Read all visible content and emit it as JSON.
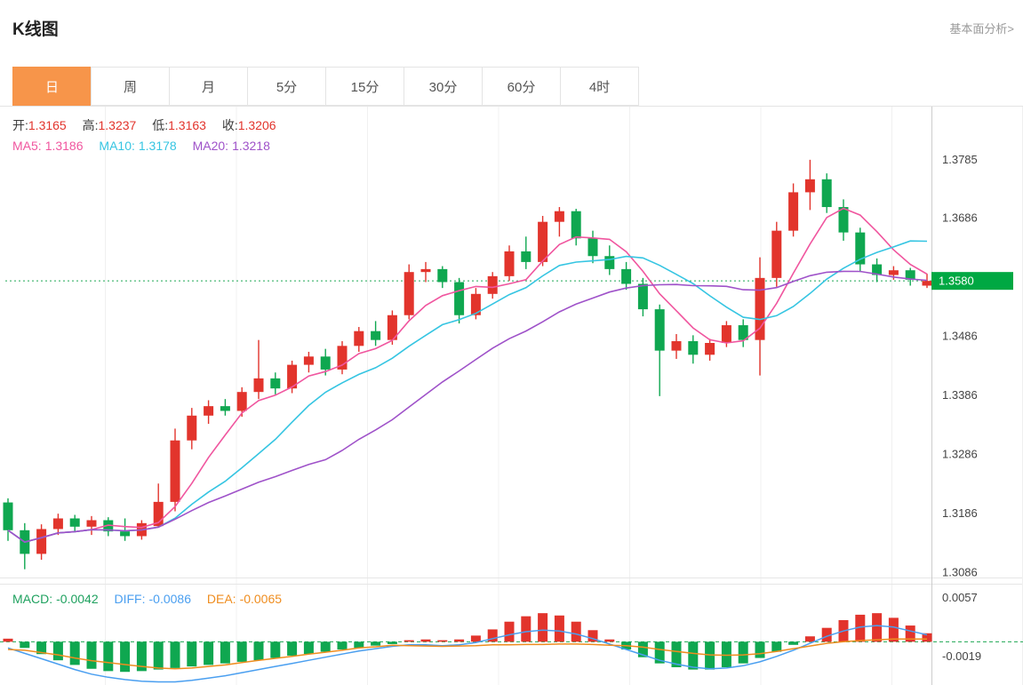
{
  "header": {
    "title": "K线图",
    "link_label": "基本面分析>"
  },
  "tabs": {
    "items": [
      {
        "label": "日",
        "active": true
      },
      {
        "label": "周",
        "active": false
      },
      {
        "label": "月",
        "active": false
      },
      {
        "label": "5分",
        "active": false
      },
      {
        "label": "15分",
        "active": false
      },
      {
        "label": "30分",
        "active": false
      },
      {
        "label": "60分",
        "active": false
      },
      {
        "label": "4时",
        "active": false
      }
    ]
  },
  "legend": {
    "ohlc": {
      "open_label": "开:",
      "open": "1.3165",
      "high_label": "高:",
      "high": "1.3237",
      "low_label": "低:",
      "low": "1.3163",
      "close_label": "收:",
      "close": "1.3206"
    },
    "ma": {
      "ma5_label": "MA5:",
      "ma5": "1.3186",
      "ma10_label": "MA10:",
      "ma10": "1.3178",
      "ma20_label": "MA20:",
      "ma20": "1.3218"
    },
    "macd": {
      "macd_label": "MACD:",
      "macd": "-0.0042",
      "diff_label": "DIFF:",
      "diff": "-0.0086",
      "dea_label": "DEA:",
      "dea": "-0.0065"
    }
  },
  "colors": {
    "up": "#e2342c",
    "down": "#0fa750",
    "ma5": "#f0569f",
    "ma10": "#36c5e2",
    "ma20": "#9f52c9",
    "diff": "#4a9ff0",
    "dea": "#ef8d1f",
    "macd_text": "#1fa15f",
    "price_line": "#1fa653",
    "badge_bg": "#00a843",
    "accent_tab": "#f7954a",
    "axis_line": "#cccccc",
    "grid_line": "#f0f0f0",
    "separator": "#e6e6e6",
    "tick_text": "#444444"
  },
  "chart_data": {
    "type": "candlestick",
    "title": "K线图 (daily K-line with MA5/MA10/MA20 and MACD)",
    "current_price": "1.3580",
    "price_axis": {
      "min": 1.3078,
      "max": 1.3875,
      "ticks": [
        "1.3785",
        "1.3686",
        "1.3486",
        "1.3386",
        "1.3286",
        "1.3186",
        "1.3086"
      ]
    },
    "ma_periods": [
      5,
      10,
      20
    ],
    "candles": [
      [
        1.3205,
        1.3212,
        1.314,
        1.3158
      ],
      [
        1.3158,
        1.317,
        1.3092,
        1.3118
      ],
      [
        1.3118,
        1.3168,
        1.3108,
        1.316
      ],
      [
        1.316,
        1.3186,
        1.315,
        1.3178
      ],
      [
        1.3178,
        1.3184,
        1.3156,
        1.3164
      ],
      [
        1.3164,
        1.3182,
        1.315,
        1.3175
      ],
      [
        1.3175,
        1.318,
        1.3148,
        1.3156
      ],
      [
        1.3156,
        1.3178,
        1.314,
        1.3148
      ],
      [
        1.3148,
        1.3175,
        1.3142,
        1.317
      ],
      [
        1.3165,
        1.3237,
        1.3163,
        1.3206
      ],
      [
        1.3206,
        1.333,
        1.319,
        1.331
      ],
      [
        1.331,
        1.3365,
        1.3295,
        1.3352
      ],
      [
        1.3352,
        1.3378,
        1.3338,
        1.3368
      ],
      [
        1.3368,
        1.338,
        1.3352,
        1.336
      ],
      [
        1.336,
        1.34,
        1.335,
        1.3392
      ],
      [
        1.3392,
        1.348,
        1.338,
        1.3415
      ],
      [
        1.3415,
        1.3425,
        1.3388,
        1.3398
      ],
      [
        1.3398,
        1.3445,
        1.339,
        1.3438
      ],
      [
        1.3438,
        1.346,
        1.3425,
        1.3452
      ],
      [
        1.3452,
        1.3465,
        1.342,
        1.343
      ],
      [
        1.343,
        1.3478,
        1.3422,
        1.347
      ],
      [
        1.347,
        1.3502,
        1.346,
        1.3495
      ],
      [
        1.3495,
        1.3512,
        1.347,
        1.348
      ],
      [
        1.348,
        1.353,
        1.3472,
        1.3522
      ],
      [
        1.3522,
        1.3608,
        1.3515,
        1.3595
      ],
      [
        1.3595,
        1.3612,
        1.3578,
        1.36
      ],
      [
        1.36,
        1.3605,
        1.3568,
        1.3578
      ],
      [
        1.3578,
        1.3585,
        1.3508,
        1.3522
      ],
      [
        1.3522,
        1.3568,
        1.3515,
        1.3558
      ],
      [
        1.3558,
        1.3595,
        1.355,
        1.3588
      ],
      [
        1.3588,
        1.364,
        1.358,
        1.363
      ],
      [
        1.363,
        1.3655,
        1.36,
        1.3612
      ],
      [
        1.3612,
        1.369,
        1.3605,
        1.368
      ],
      [
        1.368,
        1.3705,
        1.3655,
        1.3698
      ],
      [
        1.3698,
        1.3702,
        1.364,
        1.3652
      ],
      [
        1.3652,
        1.3665,
        1.361,
        1.3622
      ],
      [
        1.3622,
        1.364,
        1.359,
        1.36
      ],
      [
        1.36,
        1.3612,
        1.3565,
        1.3575
      ],
      [
        1.3575,
        1.3585,
        1.352,
        1.3532
      ],
      [
        1.3532,
        1.354,
        1.3385,
        1.3462
      ],
      [
        1.3462,
        1.349,
        1.3448,
        1.3478
      ],
      [
        1.3478,
        1.3488,
        1.344,
        1.3455
      ],
      [
        1.3455,
        1.3482,
        1.3445,
        1.3475
      ],
      [
        1.3475,
        1.3512,
        1.3468,
        1.3505
      ],
      [
        1.3505,
        1.3515,
        1.3468,
        1.348
      ],
      [
        1.348,
        1.362,
        1.342,
        1.3585
      ],
      [
        1.3585,
        1.368,
        1.357,
        1.3665
      ],
      [
        1.3665,
        1.3745,
        1.3655,
        1.373
      ],
      [
        1.373,
        1.3785,
        1.37,
        1.3752
      ],
      [
        1.3752,
        1.3762,
        1.3695,
        1.3705
      ],
      [
        1.3705,
        1.3718,
        1.3648,
        1.3662
      ],
      [
        1.3662,
        1.367,
        1.3595,
        1.3608
      ],
      [
        1.3608,
        1.3618,
        1.3578,
        1.359
      ],
      [
        1.359,
        1.3605,
        1.3582,
        1.3598
      ],
      [
        1.3598,
        1.3602,
        1.3572,
        1.3582
      ],
      [
        1.3572,
        1.3592,
        1.3568,
        1.358
      ]
    ],
    "macd": {
      "axis": {
        "min": -0.0056,
        "max": 0.0074,
        "ticks": [
          "0.0057",
          "-0.0019"
        ]
      },
      "diff": [
        -0.0008,
        -0.0015,
        -0.0022,
        -0.0029,
        -0.0036,
        -0.0042,
        -0.0046,
        -0.0049,
        -0.0051,
        -0.0052,
        -0.0052,
        -0.005,
        -0.0047,
        -0.0044,
        -0.004,
        -0.0036,
        -0.0032,
        -0.0028,
        -0.0024,
        -0.002,
        -0.0016,
        -0.0012,
        -0.0009,
        -0.0006,
        -0.0004,
        -0.0004,
        -0.0005,
        -0.0004,
        -0.0001,
        0.0004,
        0.0009,
        0.0013,
        0.0015,
        0.0014,
        0.001,
        0.0004,
        -0.0003,
        -0.001,
        -0.0017,
        -0.0024,
        -0.0029,
        -0.0033,
        -0.0035,
        -0.0034,
        -0.0031,
        -0.0026,
        -0.0019,
        -0.0011,
        -0.0002,
        0.0007,
        0.0014,
        0.0019,
        0.0021,
        0.0019,
        0.0014,
        0.0009
      ],
      "hist": [
        0.0004,
        -0.0008,
        -0.0016,
        -0.0024,
        -0.003,
        -0.0035,
        -0.0038,
        -0.0039,
        -0.0038,
        -0.0036,
        -0.0034,
        -0.0032,
        -0.003,
        -0.0028,
        -0.0026,
        -0.0024,
        -0.0021,
        -0.0018,
        -0.0016,
        -0.0013,
        -0.001,
        -0.0008,
        -0.0005,
        -0.0003,
        0.0002,
        0.0003,
        0.0002,
        0.0003,
        0.0008,
        0.0016,
        0.0026,
        0.0033,
        0.0037,
        0.0034,
        0.0026,
        0.0015,
        0.0003,
        -0.001,
        -0.002,
        -0.0028,
        -0.0033,
        -0.0036,
        -0.0036,
        -0.0033,
        -0.0028,
        -0.0021,
        -0.0013,
        -0.0004,
        0.0007,
        0.0018,
        0.0028,
        0.0035,
        0.0037,
        0.0031,
        0.0021,
        0.0011
      ]
    }
  }
}
